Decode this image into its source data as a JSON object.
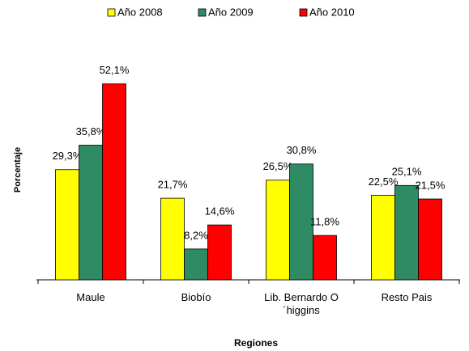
{
  "chart_data": {
    "type": "bar",
    "x_label": "Regiones",
    "y_label": "Porcentaje",
    "categories": [
      "Maule",
      "Biobío",
      "Lib. Bernardo O´higgins",
      "Resto Pais"
    ],
    "series": [
      {
        "name": "Año 2008",
        "color": "#ffff00",
        "values": [
          29.3,
          21.7,
          26.5,
          22.5
        ],
        "value_labels": [
          "29,3%",
          "21,7%",
          "26,5%",
          "22,5%"
        ]
      },
      {
        "name": "Año 2009",
        "color": "#2e8b63",
        "values": [
          35.8,
          8.2,
          30.8,
          25.1
        ],
        "value_labels": [
          "35,8%",
          "8,2%",
          "30,8%",
          "25,1%"
        ]
      },
      {
        "name": "Año 2010",
        "color": "#ff0000",
        "values": [
          52.1,
          14.6,
          11.8,
          21.5
        ],
        "value_labels": [
          "52,1%",
          "14,6%",
          "11,8%",
          "21,5%"
        ]
      }
    ],
    "ylim": [
      0,
      60
    ],
    "legend": "top"
  }
}
